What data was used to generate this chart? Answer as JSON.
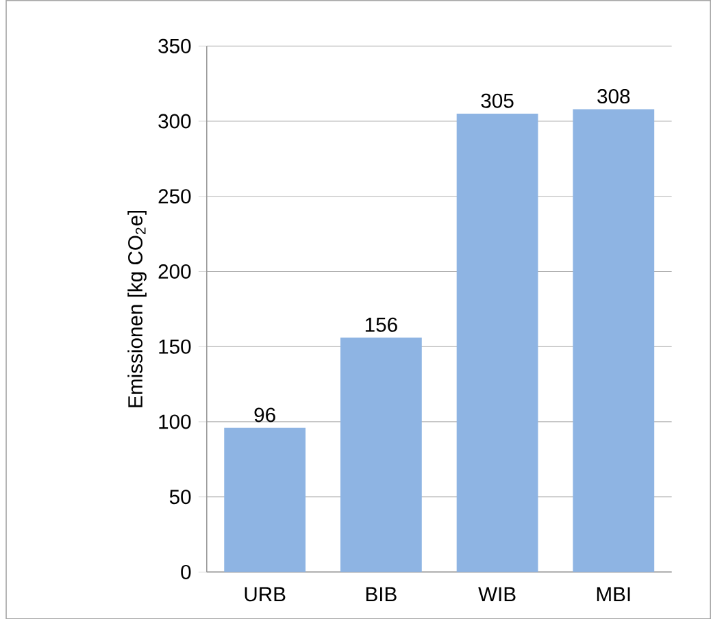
{
  "chart_data": {
    "type": "bar",
    "ylabel": "Emissionen [kg CO$_{2}$e]",
    "categories": [
      "URB",
      "BIB",
      "WIB",
      "MBI"
    ],
    "values": [
      96,
      156,
      305,
      308
    ],
    "color": "#8eb4e3",
    "ylim": [
      0,
      350
    ],
    "yticks": [
      0,
      50,
      100,
      150,
      200,
      250,
      300,
      350
    ],
    "grid": "y",
    "data_labels": true
  }
}
